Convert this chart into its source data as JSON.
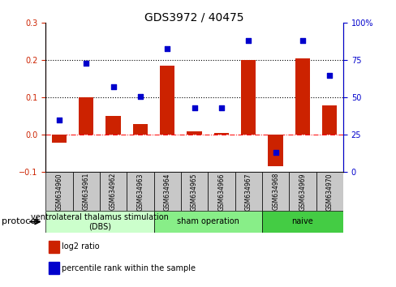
{
  "title": "GDS3972 / 40475",
  "samples": [
    "GSM634960",
    "GSM634961",
    "GSM634962",
    "GSM634963",
    "GSM634964",
    "GSM634965",
    "GSM634966",
    "GSM634967",
    "GSM634968",
    "GSM634969",
    "GSM634970"
  ],
  "log2_ratio": [
    -0.02,
    0.1,
    0.05,
    0.03,
    0.185,
    0.01,
    0.005,
    0.2,
    -0.085,
    0.205,
    0.08
  ],
  "percentile_rank": [
    35,
    73,
    57,
    51,
    83,
    43,
    43,
    88,
    13,
    88,
    65
  ],
  "groups": [
    {
      "label": "ventrolateral thalamus stimulation\n(DBS)",
      "start": 0,
      "end": 3,
      "color": "#ccffcc"
    },
    {
      "label": "sham operation",
      "start": 4,
      "end": 7,
      "color": "#88ee88"
    },
    {
      "label": "naive",
      "start": 8,
      "end": 10,
      "color": "#44cc44"
    }
  ],
  "bar_color": "#cc2200",
  "dot_color": "#0000cc",
  "ylim_left": [
    -0.1,
    0.3
  ],
  "ylim_right": [
    0,
    100
  ],
  "yticks_left": [
    -0.1,
    0.0,
    0.1,
    0.2,
    0.3
  ],
  "yticks_right": [
    0,
    25,
    50,
    75,
    100
  ],
  "hline_y": [
    0.0,
    0.1,
    0.2
  ],
  "hline_styles": [
    "dashdot",
    "dotted",
    "dotted"
  ],
  "legend_items": [
    {
      "label": "log2 ratio",
      "color": "#cc2200"
    },
    {
      "label": "percentile rank within the sample",
      "color": "#0000cc"
    }
  ],
  "protocol_label": "protocol",
  "bg_color": "#ffffff",
  "label_box_color": "#c8c8c8",
  "title_fontsize": 10,
  "tick_fontsize": 7,
  "sample_fontsize": 5.5,
  "legend_fontsize": 7,
  "protocol_fontsize": 8,
  "group_fontsize": 7
}
